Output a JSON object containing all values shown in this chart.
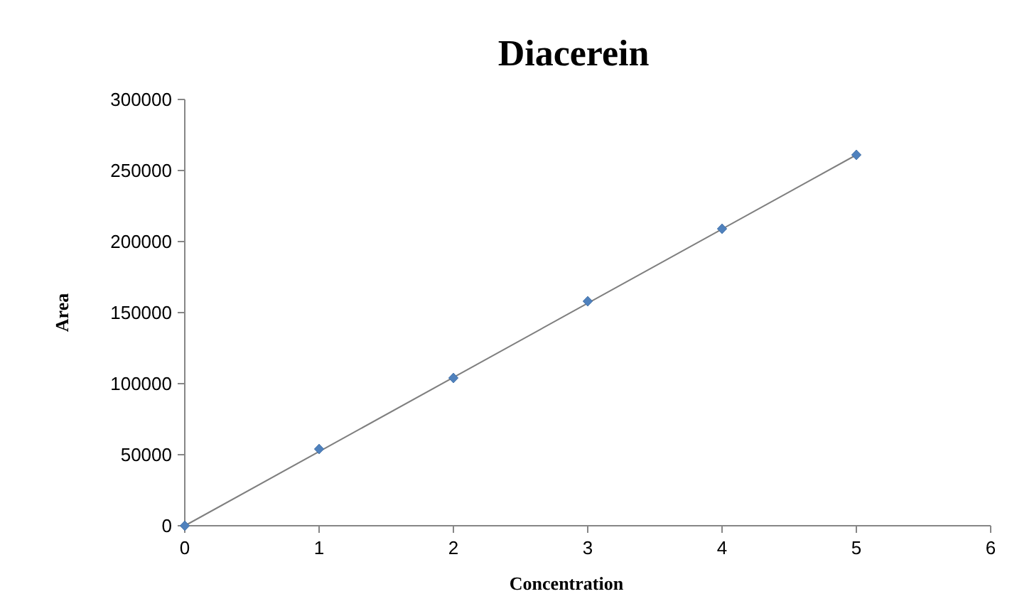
{
  "chart_data": {
    "type": "scatter",
    "title": "Diacerein",
    "xlabel": "Concentration",
    "ylabel": "Area",
    "xlim": [
      0,
      6
    ],
    "xticks": [
      0,
      1,
      2,
      3,
      4,
      5,
      6
    ],
    "ylim": [
      0,
      300000
    ],
    "yticks": [
      0,
      50000,
      100000,
      150000,
      200000,
      250000,
      300000
    ],
    "grid": false,
    "marker": "diamond",
    "series": [
      {
        "color": "#4f81bd",
        "x": [
          0,
          1,
          2,
          3,
          4,
          5
        ],
        "values": [
          0,
          54000,
          104000,
          158000,
          209000,
          261000
        ]
      },
      {
        "type": "line",
        "color": "#7f7f7f",
        "x": [
          0,
          5
        ],
        "values": [
          0,
          261000
        ],
        "marker": "none",
        "line_style": "solid"
      }
    ]
  }
}
